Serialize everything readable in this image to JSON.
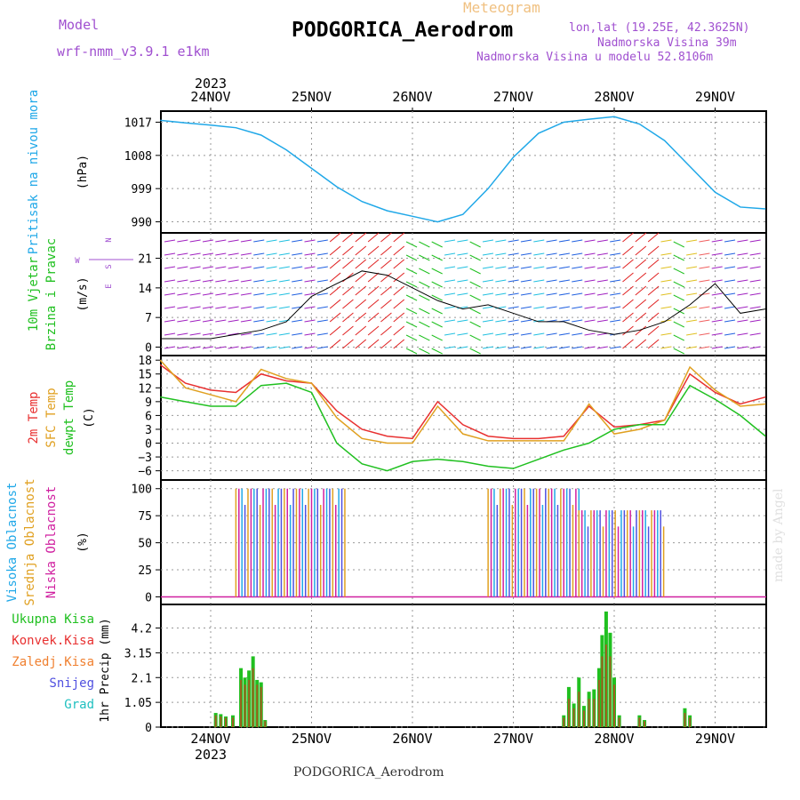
{
  "header": {
    "model_label": "Model",
    "model_name": "wrf-nmm_v3.9.1  e1km",
    "meteogram": "Meteogram",
    "station": "PODGORICA_Aerodrom",
    "lonlat": "lon,lat (19.25E, 42.3625N)",
    "altitude": "Nadmorska Visina 39m",
    "altitude_model": "Nadmorska Visina u modelu 52.8106m"
  },
  "footer": {
    "station": "PODGORICA_Aerodrom",
    "made_by": "made by Angel"
  },
  "colors": {
    "pressure": "#20a8e8",
    "temp2m": "#e83030",
    "sfc": "#e0a020",
    "dewpt": "#20c020",
    "high_cloud": "#20a8e8",
    "mid_cloud": "#e0a020",
    "low_cloud": "#d020a0",
    "total_precip": "#20c020",
    "conv_precip": "#e83030",
    "frozen": "#f08030",
    "snow": "#5050e0",
    "grad": "#20c0c0"
  },
  "chart_data": [
    {
      "type": "line",
      "panel": "pressure",
      "ylabel": [
        "Pritisak na nivou mora",
        "(hPa)"
      ],
      "yticks": [
        990,
        999,
        1008,
        1017
      ],
      "ylim": [
        987,
        1020
      ],
      "x_days": [
        "24NOV",
        "25NOV",
        "26NOV",
        "27NOV",
        "28NOV",
        "29NOV"
      ],
      "year": "2023",
      "series": [
        {
          "x": [
            0,
            0.25,
            0.5,
            0.75,
            1,
            1.25,
            1.5,
            1.75,
            2,
            2.25,
            2.5,
            2.75,
            3,
            3.25,
            3.5,
            3.75,
            4,
            4.25,
            4.5,
            4.75,
            5,
            5.25,
            5.5,
            5.75,
            6
          ],
          "values": [
            1017.5,
            1016.8,
            1016.2,
            1015.5,
            1013.5,
            1009.5,
            1004.5,
            999.5,
            995.5,
            993.0,
            991.5,
            990.0,
            992.0,
            999.0,
            1007.5,
            1014.0,
            1017.0,
            1017.8,
            1018.5,
            1016.5,
            1012.0,
            1005.0,
            998.0,
            994.0,
            993.5
          ]
        }
      ]
    },
    {
      "type": "line",
      "panel": "wind",
      "ylabel": [
        "10m Vjetar",
        "Brzina i Pravac",
        "(m/s)"
      ],
      "compass": [
        "N",
        "W",
        "E",
        "S"
      ],
      "yticks": [
        0,
        7,
        14,
        21
      ],
      "ylim": [
        -2,
        27
      ],
      "x_days": [
        "24NOV",
        "25NOV",
        "26NOV",
        "27NOV",
        "28NOV",
        "29NOV"
      ]
    },
    {
      "type": "line",
      "panel": "temperature",
      "ylabel": [
        "2m Temp",
        "SFC Temp",
        "dewpt Temp",
        "(C)"
      ],
      "yticks": [
        -6,
        -3,
        0,
        3,
        6,
        9,
        12,
        15,
        18
      ],
      "ylim": [
        -8,
        19
      ],
      "x_days": [
        "24NOV",
        "25NOV",
        "26NOV",
        "27NOV",
        "28NOV",
        "29NOV"
      ],
      "x": [
        0,
        0.25,
        0.5,
        0.75,
        1,
        1.25,
        1.5,
        1.75,
        2,
        2.25,
        2.5,
        2.75,
        3,
        3.25,
        3.5,
        3.75,
        4,
        4.25,
        4.5,
        4.75,
        5,
        5.25,
        5.5,
        5.75,
        6
      ],
      "series": [
        {
          "name": "2m Temp",
          "values": [
            17.0,
            13.0,
            11.5,
            11.0,
            15.0,
            13.5,
            13.0,
            7.0,
            3.0,
            1.5,
            1.0,
            9.0,
            4.0,
            1.5,
            1.0,
            1.0,
            1.5,
            8.0,
            3.5,
            4.0,
            5.0,
            15.0,
            11.0,
            8.5,
            10.0
          ]
        },
        {
          "name": "SFC Temp",
          "values": [
            18.0,
            12.0,
            10.5,
            9.0,
            16.0,
            14.0,
            13.0,
            5.5,
            1.0,
            0.0,
            0.0,
            8.0,
            2.0,
            0.5,
            0.5,
            0.5,
            0.5,
            8.5,
            2.0,
            3.0,
            5.0,
            16.5,
            11.5,
            8.0,
            8.5
          ]
        },
        {
          "name": "dewpt Temp",
          "values": [
            10.0,
            9.0,
            8.0,
            8.0,
            12.5,
            13.0,
            11.0,
            0.0,
            -4.5,
            -6.0,
            -4.0,
            -3.5,
            -4.0,
            -5.0,
            -5.5,
            -3.5,
            -1.5,
            0.0,
            3.0,
            4.0,
            4.0,
            12.5,
            9.5,
            6.0,
            1.5
          ]
        }
      ]
    },
    {
      "type": "bar",
      "panel": "clouds",
      "ylabel": [
        "Visoka Oblacnost",
        "Srednja Oblacnost",
        "Niska Oblacnost",
        "(%)"
      ],
      "yticks": [
        0,
        25,
        50,
        75,
        100
      ],
      "ylim": [
        -7,
        108
      ],
      "x_days": [
        "24NOV",
        "25NOV",
        "26NOV",
        "27NOV",
        "28NOV",
        "29NOV"
      ],
      "segments": [
        {
          "from": 0.75,
          "to": 1.85,
          "value": 100
        },
        {
          "from": 3.25,
          "to": 4.15,
          "value": 100
        },
        {
          "from": 4.15,
          "to": 5.0,
          "value": 80
        }
      ]
    },
    {
      "type": "bar",
      "panel": "precipitation",
      "ylabel": [
        "1hr Precip (mm)"
      ],
      "legend": [
        "Ukupna Kisa",
        "Konvek.Kisa",
        "Zaledj.Kisa",
        "Snijeg",
        "Grad"
      ],
      "yticks": [
        0,
        1.05,
        2.1,
        3.15,
        4.2
      ],
      "ylim": [
        0,
        5.2
      ],
      "x_days": [
        "24NOV",
        "25NOV",
        "26NOV",
        "27NOV",
        "28NOV",
        "29NOV"
      ],
      "year": "2023",
      "x": [
        0.55,
        0.6,
        0.65,
        0.72,
        0.8,
        0.84,
        0.88,
        0.92,
        0.96,
        1.0,
        1.04,
        4.0,
        4.05,
        4.1,
        4.15,
        4.2,
        4.25,
        4.3,
        4.35,
        4.38,
        4.42,
        4.46,
        4.5,
        4.55,
        4.75,
        4.8,
        5.2,
        5.25
      ],
      "values": [
        0.6,
        0.55,
        0.45,
        0.5,
        2.5,
        2.1,
        2.4,
        3.0,
        2.0,
        1.9,
        0.3,
        0.5,
        1.7,
        1.0,
        2.1,
        0.9,
        1.5,
        1.6,
        2.5,
        3.9,
        4.9,
        4.0,
        2.1,
        0.5,
        0.5,
        0.3,
        0.8,
        0.5
      ],
      "conv_values": [
        0.5,
        0.45,
        0.4,
        0.4,
        2.0,
        1.8,
        2.0,
        2.5,
        1.8,
        1.7,
        0.25,
        0.4,
        1.2,
        0.8,
        1.5,
        0.7,
        1.2,
        1.2,
        2.0,
        3.0,
        3.5,
        3.0,
        1.8,
        0.4,
        0.4,
        0.25,
        0.6,
        0.4
      ]
    }
  ]
}
